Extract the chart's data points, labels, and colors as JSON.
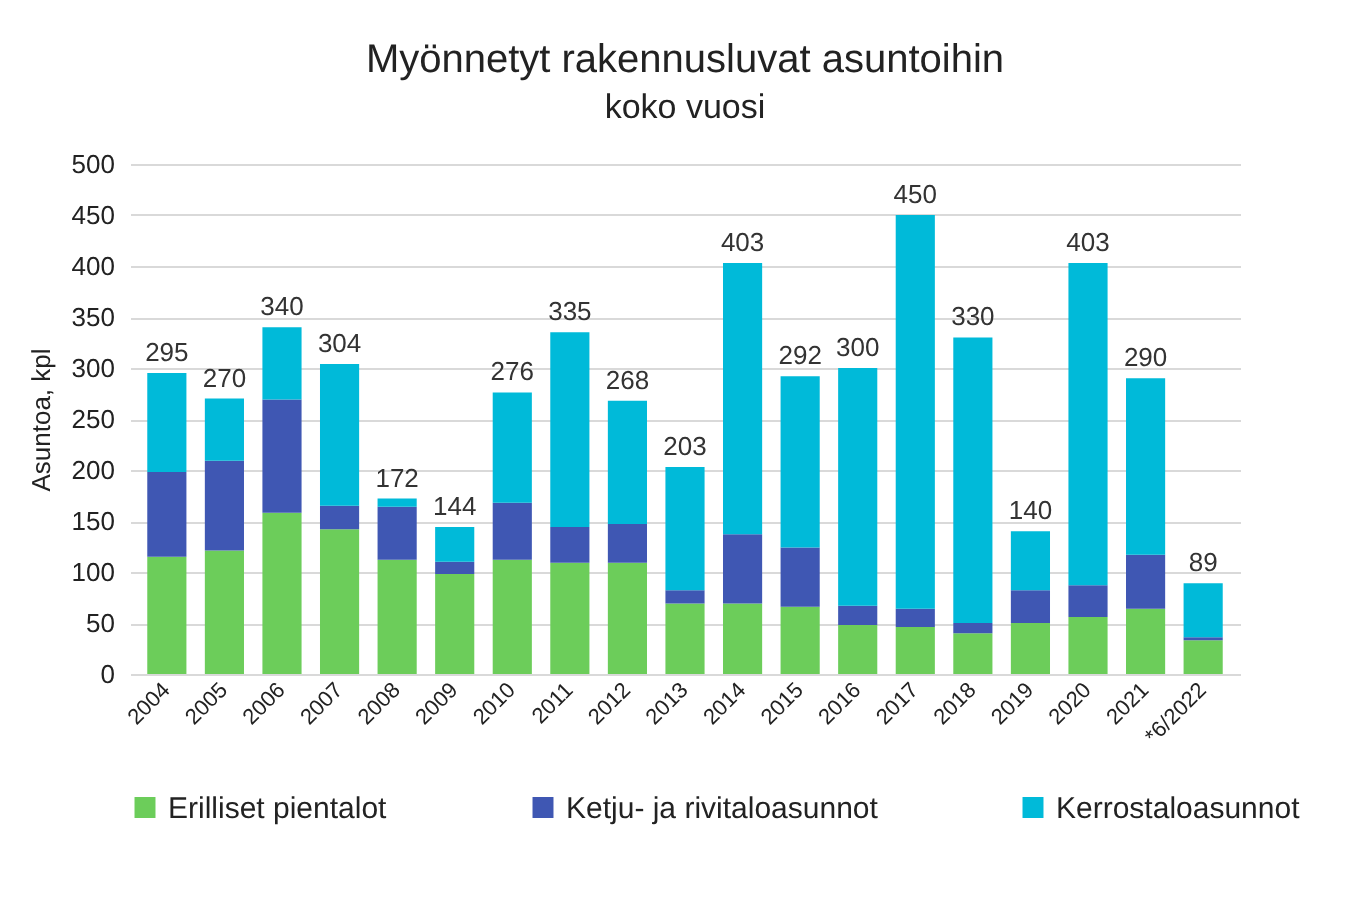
{
  "chart_data": {
    "type": "bar",
    "title": "Myönnetyt rakennusluvat asuntoihin",
    "subtitle": "koko vuosi",
    "ylabel": "Asuntoa, kpl",
    "categories": [
      "2004",
      "2005",
      "2006",
      "2007",
      "2008",
      "2009",
      "2010",
      "2011",
      "2012",
      "2013",
      "2014",
      "2015",
      "2016",
      "2017",
      "2018",
      "2019",
      "2020",
      "2021",
      "*6/2022"
    ],
    "series": [
      {
        "name": "Erilliset pientalot",
        "color": "#6ccd5a",
        "values": [
          115,
          121,
          158,
          142,
          112,
          98,
          112,
          109,
          109,
          69,
          69,
          66,
          48,
          46,
          40,
          50,
          56,
          64,
          33
        ]
      },
      {
        "name": "Ketju- ja rivitaloasunnot",
        "color": "#3f57b3",
        "values": [
          83,
          88,
          111,
          23,
          52,
          12,
          56,
          35,
          38,
          13,
          68,
          58,
          19,
          18,
          10,
          32,
          31,
          53,
          3
        ]
      },
      {
        "name": "Kerrostaloasunnot",
        "color": "#00bad9",
        "values": [
          97,
          61,
          71,
          139,
          8,
          34,
          108,
          191,
          121,
          121,
          266,
          168,
          233,
          386,
          280,
          58,
          316,
          173,
          53
        ]
      }
    ],
    "stacked": true,
    "totals": [
      "295",
      "270",
      "340",
      "304",
      "172",
      "144",
      "276",
      "335",
      "268",
      "203",
      "403",
      "292",
      "300",
      "450",
      "330",
      "140",
      "403",
      "290",
      "89"
    ],
    "ylim": [
      0,
      500
    ],
    "yticks": [
      0,
      50,
      100,
      150,
      200,
      250,
      300,
      350,
      400,
      450,
      500
    ],
    "grid": "y",
    "legend": "bottom"
  }
}
